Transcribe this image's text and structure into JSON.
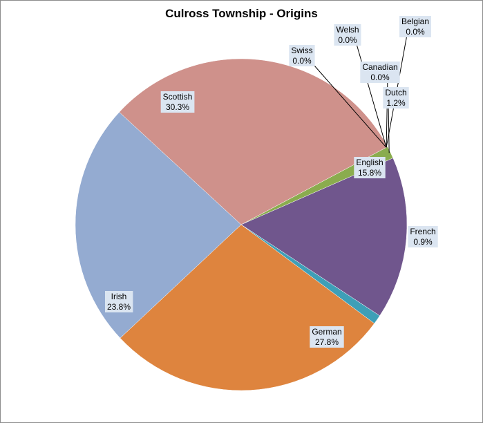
{
  "chart_data": {
    "type": "pie",
    "title": "Culross Township - Origins",
    "slices": [
      {
        "label": "Dutch",
        "value_text": "1.2%",
        "value": 1.2,
        "color": "#8aac4e"
      },
      {
        "label": "English",
        "value_text": "15.8%",
        "value": 15.8,
        "color": "#70568d"
      },
      {
        "label": "French",
        "value_text": "0.9%",
        "value": 0.9,
        "color": "#3e9fb7"
      },
      {
        "label": "German",
        "value_text": "27.8%",
        "value": 27.8,
        "color": "#de843e"
      },
      {
        "label": "Irish",
        "value_text": "23.8%",
        "value": 23.8,
        "color": "#94abd1"
      },
      {
        "label": "Scottish",
        "value_text": "30.3%",
        "value": 30.3,
        "color": "#cf918b"
      },
      {
        "label": "Swiss",
        "value_text": "0.0%",
        "value": 0.0,
        "color": "#9bbb59"
      },
      {
        "label": "Welsh",
        "value_text": "0.0%",
        "value": 0.0,
        "color": "#4bacc6"
      },
      {
        "label": "Belgian",
        "value_text": "0.0%",
        "value": 0.0,
        "color": "#f79646"
      },
      {
        "label": "Canadian",
        "value_text": "0.0%",
        "value": 0.0,
        "color": "#4f81bd"
      }
    ],
    "legend": "none",
    "label_style": "category name and percentage"
  }
}
